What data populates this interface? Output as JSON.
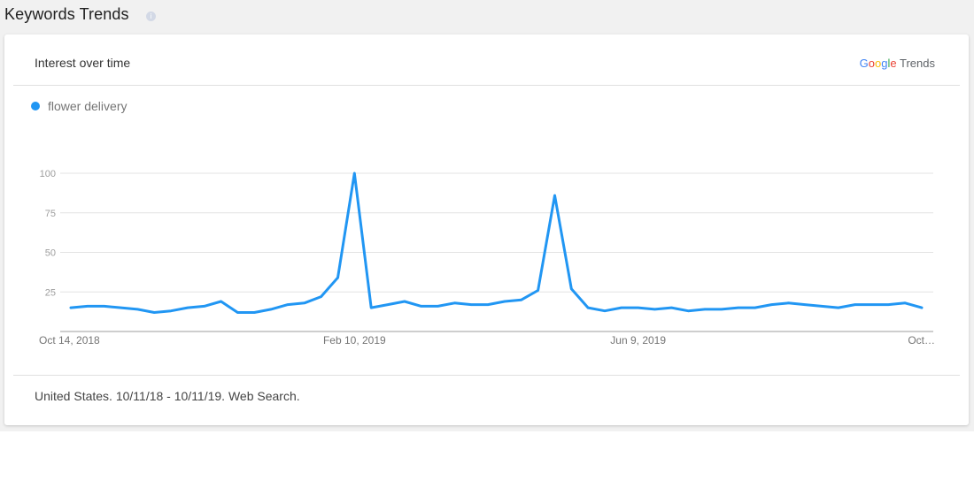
{
  "page": {
    "section_title": "Keywords Trends",
    "info_icon": "info-icon"
  },
  "card": {
    "title": "Interest over time",
    "brand_google": "Google",
    "brand_trends": "Trends",
    "brand_colors": [
      "#4285F4",
      "#EA4335",
      "#FBBC05",
      "#4285F4",
      "#34A853",
      "#EA4335"
    ],
    "footer": "United States. 10/11/18 - 10/11/19. Web Search."
  },
  "chart_data": {
    "type": "line",
    "title": "",
    "xlabel": "",
    "ylabel": "",
    "ylim": [
      0,
      100
    ],
    "yticks": [
      25,
      50,
      75,
      100
    ],
    "x_tick_labels": [
      "Oct 14, 2018",
      "Feb 10, 2019",
      "Jun 9, 2019",
      "Oct…"
    ],
    "grid": true,
    "legend": "top-left",
    "series": [
      {
        "name": "flower delivery",
        "color": "#2196F3",
        "values": [
          15,
          16,
          16,
          15,
          14,
          12,
          13,
          15,
          16,
          19,
          12,
          12,
          14,
          17,
          18,
          22,
          34,
          100,
          15,
          17,
          19,
          16,
          16,
          18,
          17,
          17,
          19,
          20,
          26,
          86,
          27,
          15,
          13,
          15,
          15,
          14,
          15,
          13,
          14,
          14,
          15,
          15,
          17,
          18,
          17,
          16,
          15,
          17,
          17,
          17,
          18,
          15
        ]
      }
    ]
  }
}
